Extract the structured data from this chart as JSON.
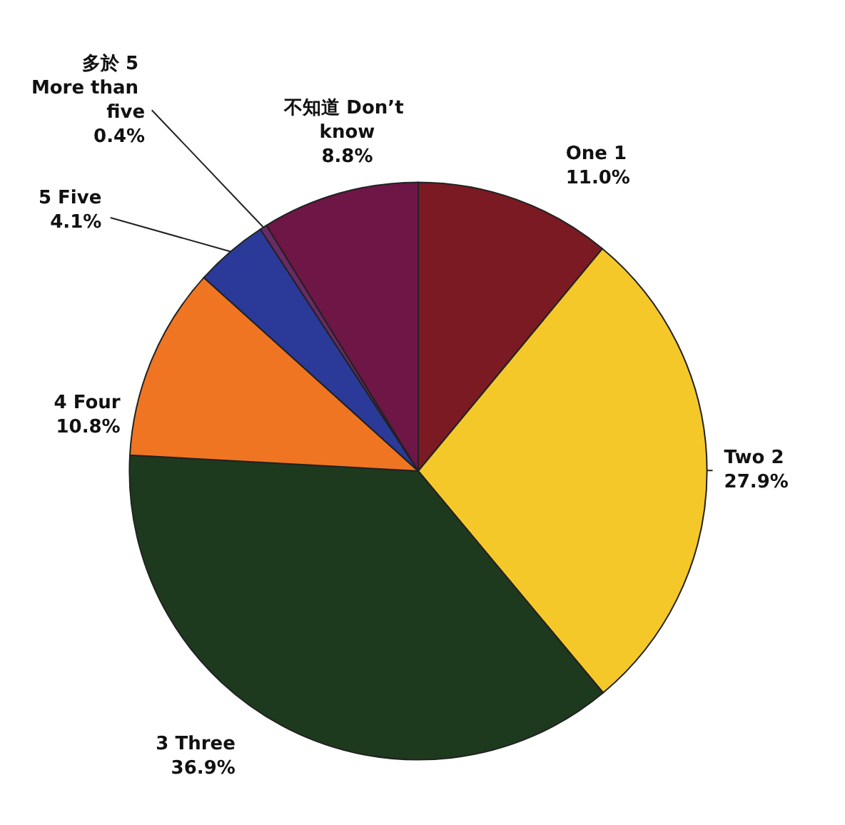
{
  "chart_data": {
    "type": "pie",
    "categories": [
      "One 1",
      "Two 2",
      "3 Three",
      "4 Four",
      "5 Five",
      "多於 5 More than five",
      "不知道 Don’t know"
    ],
    "values": [
      11.0,
      27.9,
      36.9,
      10.8,
      4.1,
      0.4,
      8.8
    ],
    "colors": [
      "#7b1a22",
      "#f5c82a",
      "#1e3a1e",
      "#f07522",
      "#2b3a98",
      "#6a2a66",
      "#6e1646"
    ],
    "value_labels": [
      "11.0%",
      "27.9%",
      "36.9%",
      "10.8%",
      "4.1%",
      "0.4%",
      "8.8%"
    ],
    "legend": false
  }
}
